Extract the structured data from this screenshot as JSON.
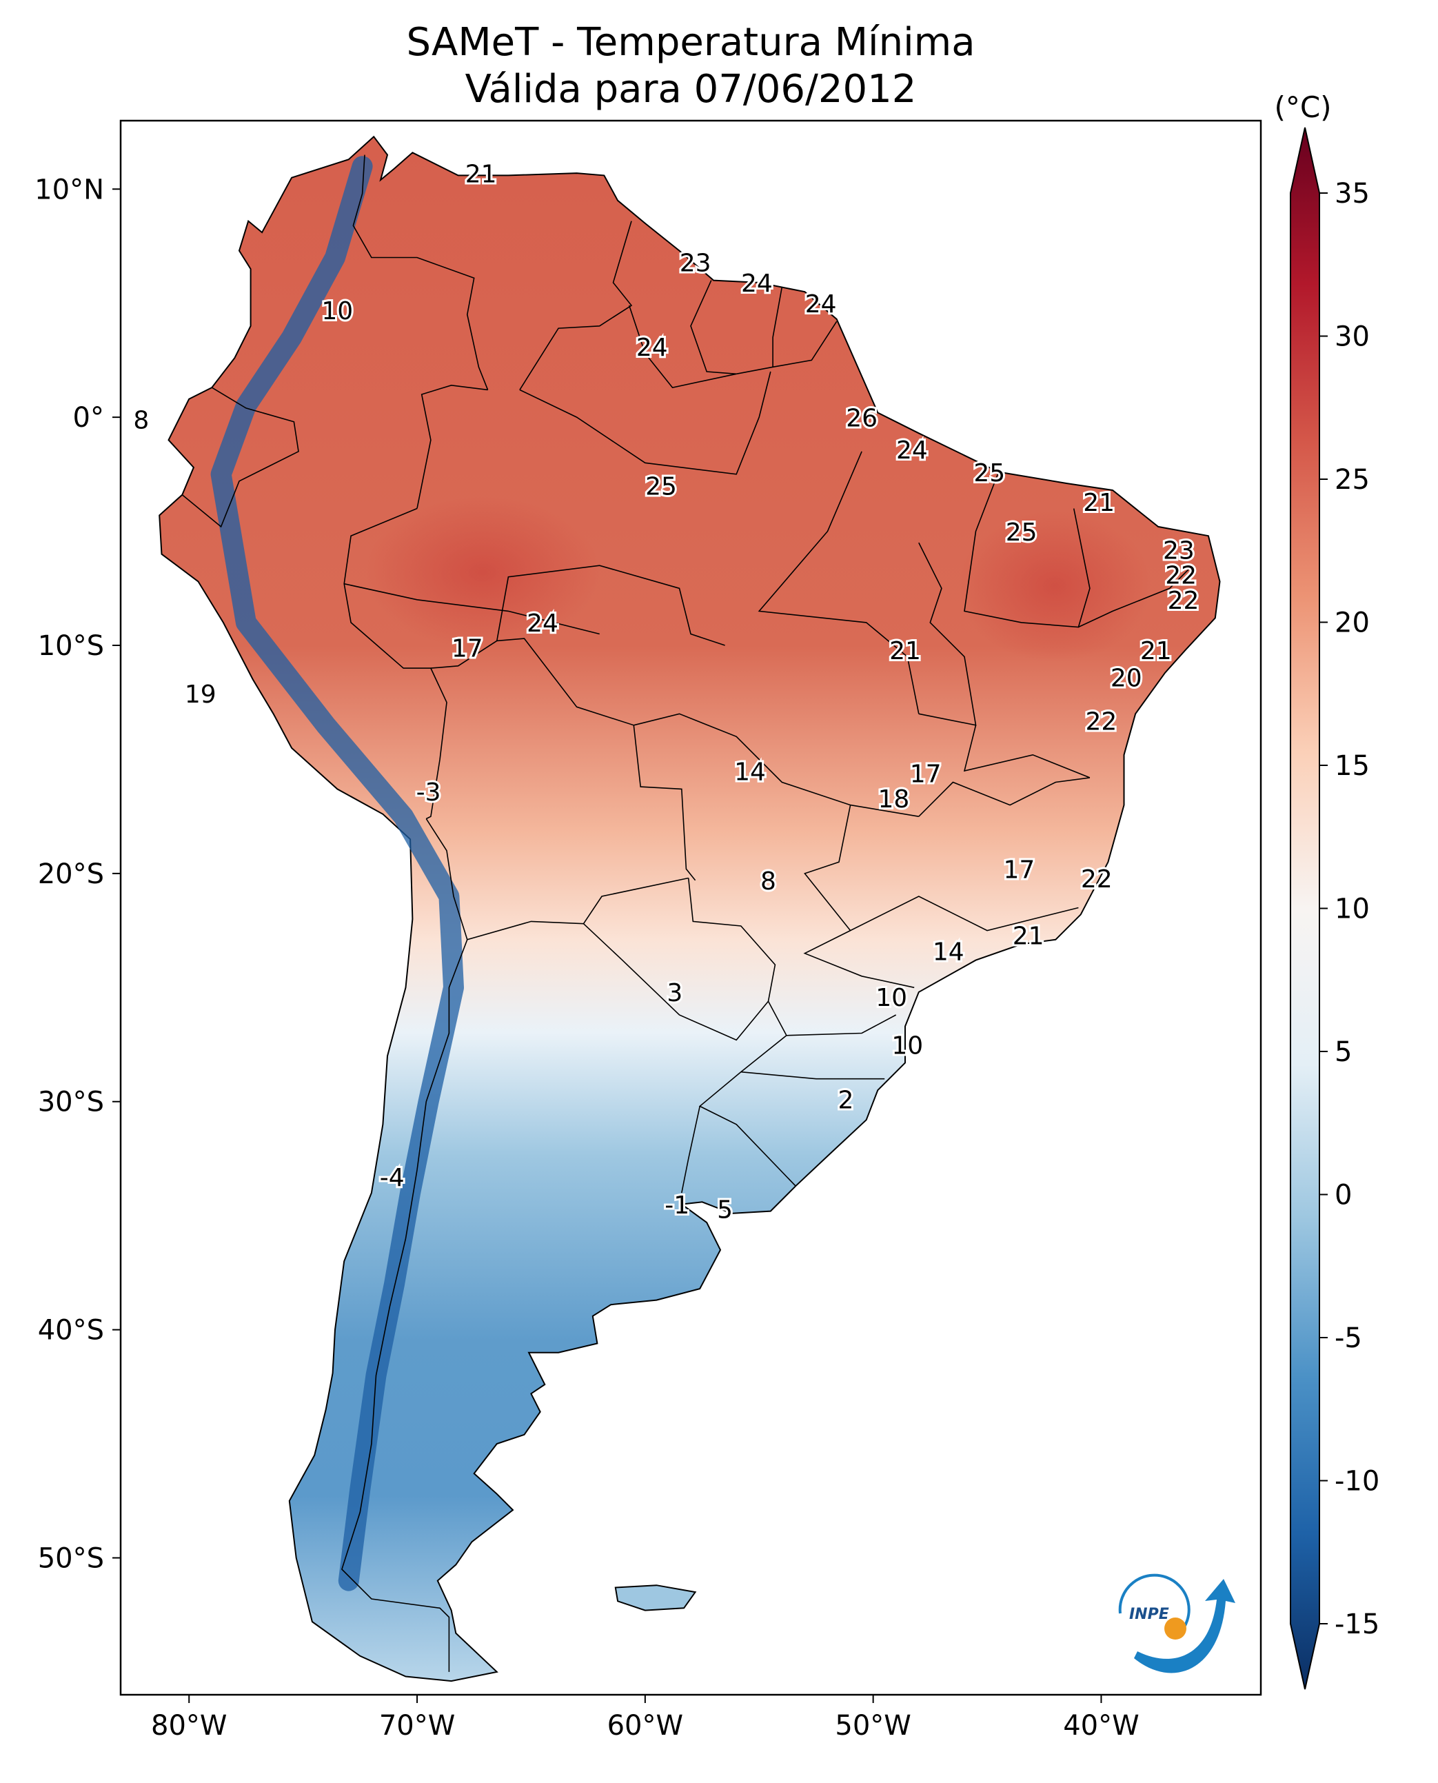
{
  "title": {
    "line1": "SAMeT - Temperatura Mínima",
    "line2": "Válida para 07/06/2012"
  },
  "colorbar": {
    "unit": "(°C)",
    "min": -15,
    "max": 35,
    "ticks": [
      "35",
      "30",
      "25",
      "20",
      "15",
      "10",
      "5",
      "0",
      "-5",
      "-10",
      "-15"
    ],
    "colors": [
      "#0b2e63",
      "#1e62a8",
      "#4b91c6",
      "#9cc6e0",
      "#e4eff6",
      "#f8f4f2",
      "#fbd0b8",
      "#ec9374",
      "#d45749",
      "#b2182b",
      "#67001f"
    ]
  },
  "map": {
    "lon_range": [
      -83,
      -33
    ],
    "lat_range": [
      -56,
      13
    ],
    "x_ticks": [
      {
        "lon": -80,
        "label": "80°W"
      },
      {
        "lon": -70,
        "label": "70°W"
      },
      {
        "lon": -60,
        "label": "60°W"
      },
      {
        "lon": -50,
        "label": "50°W"
      },
      {
        "lon": -40,
        "label": "40°W"
      }
    ],
    "y_ticks": [
      {
        "lat": 10,
        "label": "10°N"
      },
      {
        "lat": 0,
        "label": "0°"
      },
      {
        "lat": -10,
        "label": "10°S"
      },
      {
        "lat": -20,
        "label": "20°S"
      },
      {
        "lat": -30,
        "label": "30°S"
      },
      {
        "lat": -40,
        "label": "40°S"
      },
      {
        "lat": -50,
        "label": "50°S"
      }
    ],
    "station_values": [
      {
        "lon": -67.2,
        "lat": 10.6,
        "value": "21"
      },
      {
        "lon": -73.5,
        "lat": 4.6,
        "value": "10"
      },
      {
        "lon": -57.8,
        "lat": 6.7,
        "value": "23"
      },
      {
        "lon": -55.1,
        "lat": 5.8,
        "value": "24"
      },
      {
        "lon": -52.3,
        "lat": 4.9,
        "value": "24"
      },
      {
        "lon": -82.1,
        "lat": -0.2,
        "value": "8"
      },
      {
        "lon": -59.7,
        "lat": 3.0,
        "value": "24"
      },
      {
        "lon": -50.5,
        "lat": -0.1,
        "value": "26"
      },
      {
        "lon": -48.3,
        "lat": -1.5,
        "value": "24"
      },
      {
        "lon": -59.3,
        "lat": -3.1,
        "value": "25"
      },
      {
        "lon": -44.9,
        "lat": -2.5,
        "value": "25"
      },
      {
        "lon": -43.5,
        "lat": -5.1,
        "value": "25"
      },
      {
        "lon": -40.1,
        "lat": -3.8,
        "value": "21"
      },
      {
        "lon": -36.6,
        "lat": -5.9,
        "value": "23"
      },
      {
        "lon": -36.5,
        "lat": -7.0,
        "value": "22"
      },
      {
        "lon": -36.4,
        "lat": -8.1,
        "value": "22"
      },
      {
        "lon": -37.6,
        "lat": -10.3,
        "value": "21"
      },
      {
        "lon": -38.9,
        "lat": -11.5,
        "value": "20"
      },
      {
        "lon": -40.0,
        "lat": -13.4,
        "value": "22"
      },
      {
        "lon": -64.5,
        "lat": -9.1,
        "value": "24"
      },
      {
        "lon": -67.8,
        "lat": -10.2,
        "value": "17"
      },
      {
        "lon": -48.6,
        "lat": -10.3,
        "value": "21"
      },
      {
        "lon": -79.5,
        "lat": -12.2,
        "value": "19"
      },
      {
        "lon": -55.4,
        "lat": -15.6,
        "value": "14"
      },
      {
        "lon": -47.7,
        "lat": -15.7,
        "value": "17"
      },
      {
        "lon": -49.1,
        "lat": -16.8,
        "value": "18"
      },
      {
        "lon": -69.5,
        "lat": -16.5,
        "value": "-3"
      },
      {
        "lon": -54.6,
        "lat": -20.4,
        "value": "8"
      },
      {
        "lon": -43.6,
        "lat": -19.9,
        "value": "17"
      },
      {
        "lon": -40.2,
        "lat": -20.3,
        "value": "22"
      },
      {
        "lon": -43.2,
        "lat": -22.8,
        "value": "21"
      },
      {
        "lon": -46.7,
        "lat": -23.5,
        "value": "14"
      },
      {
        "lon": -58.7,
        "lat": -25.3,
        "value": "3"
      },
      {
        "lon": -49.2,
        "lat": -25.5,
        "value": "10"
      },
      {
        "lon": -48.5,
        "lat": -27.6,
        "value": "10"
      },
      {
        "lon": -51.2,
        "lat": -30.0,
        "value": "2"
      },
      {
        "lon": -71.1,
        "lat": -33.4,
        "value": "-4"
      },
      {
        "lon": -58.6,
        "lat": -34.6,
        "value": "-1"
      },
      {
        "lon": -56.5,
        "lat": -34.8,
        "value": "5"
      }
    ]
  },
  "logo": {
    "text": "INPE"
  }
}
